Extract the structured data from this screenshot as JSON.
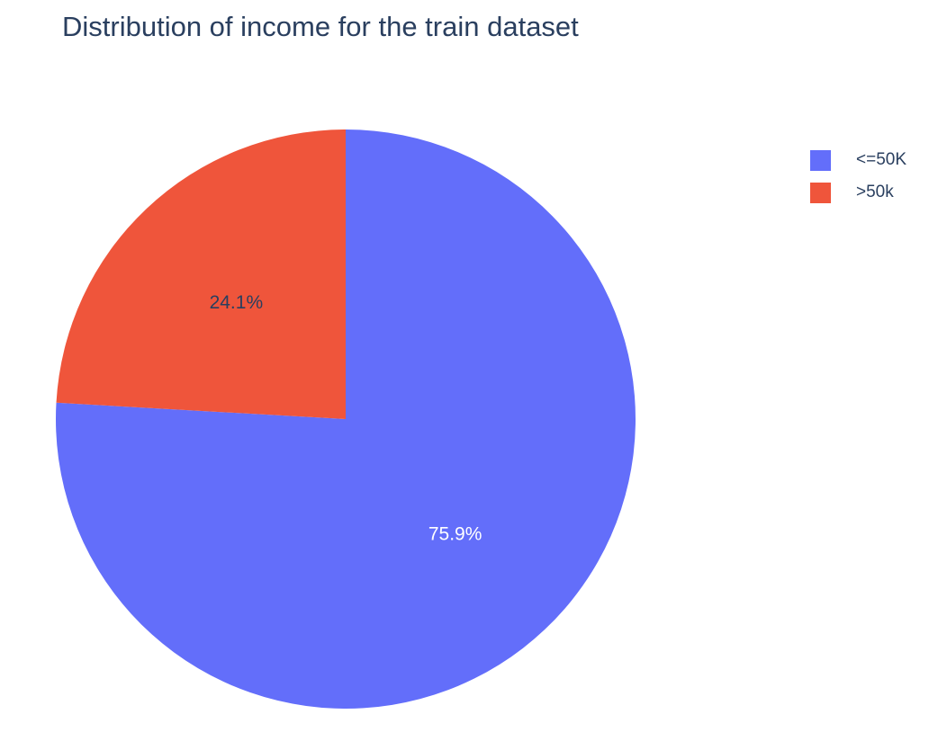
{
  "chart_data": {
    "type": "pie",
    "title": "Distribution of income for the train dataset",
    "labels": [
      "<=50K",
      ">50k"
    ],
    "values": [
      75.9,
      24.1
    ],
    "text_labels": [
      "75.9%",
      "24.1%"
    ],
    "colors": [
      "#636efa",
      "#EF553B"
    ],
    "label_text_colors": [
      "#ffffff",
      "#2a3f5f"
    ],
    "legend_position": "top-right",
    "direction": "clockwise",
    "start": "top"
  }
}
